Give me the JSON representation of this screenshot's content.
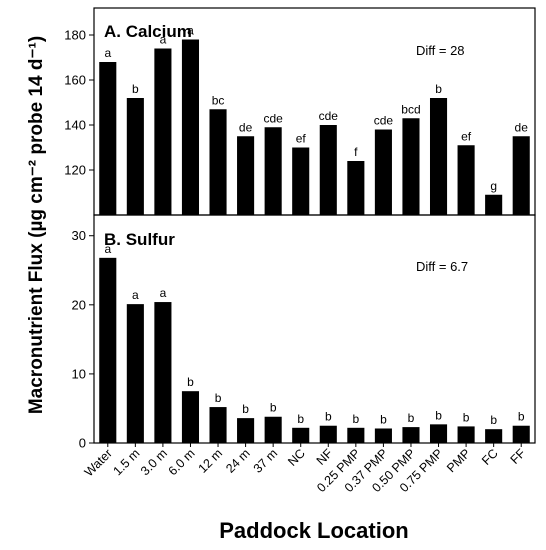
{
  "chart_data": {
    "type": "bar",
    "ylabel": "Macronutrient Flux (µg cm⁻² probe 14 d⁻¹)",
    "xlabel": "Paddock Location",
    "categories": [
      "Water",
      "1.5 m",
      "3.0 m",
      "6.0 m",
      "12 m",
      "24 m",
      "37 m",
      "NC",
      "NF",
      "0.25 PMP",
      "0.37 PMP",
      "0.50 PMP",
      "0.75 PMP",
      "PMP",
      "FC",
      "FF"
    ],
    "panels": [
      {
        "title": "A. Calcium",
        "diff": "Diff = 28",
        "ylim": [
          100,
          192
        ],
        "yticks": [
          120,
          140,
          160,
          180
        ],
        "values": [
          168,
          152,
          174,
          178,
          147,
          135,
          139,
          130,
          140,
          124,
          138,
          143,
          152,
          131,
          109,
          135
        ],
        "letters": [
          "a",
          "b",
          "a",
          "a",
          "bc",
          "de",
          "cde",
          "ef",
          "cde",
          "f",
          "cde",
          "bcd",
          "b",
          "ef",
          "g",
          "de"
        ]
      },
      {
        "title": "B. Sulfur",
        "diff": "Diff = 6.7",
        "ylim": [
          0,
          33
        ],
        "yticks": [
          0,
          10,
          20,
          30
        ],
        "values": [
          26.8,
          20.1,
          20.4,
          7.5,
          5.2,
          3.6,
          3.8,
          2.2,
          2.5,
          2.2,
          2.1,
          2.3,
          2.7,
          2.4,
          2.0,
          2.5
        ],
        "letters": [
          "a",
          "a",
          "a",
          "b",
          "b",
          "b",
          "b",
          "b",
          "b",
          "b",
          "b",
          "b",
          "b",
          "b",
          "b",
          "b"
        ]
      }
    ],
    "bar_color": "#000000"
  }
}
